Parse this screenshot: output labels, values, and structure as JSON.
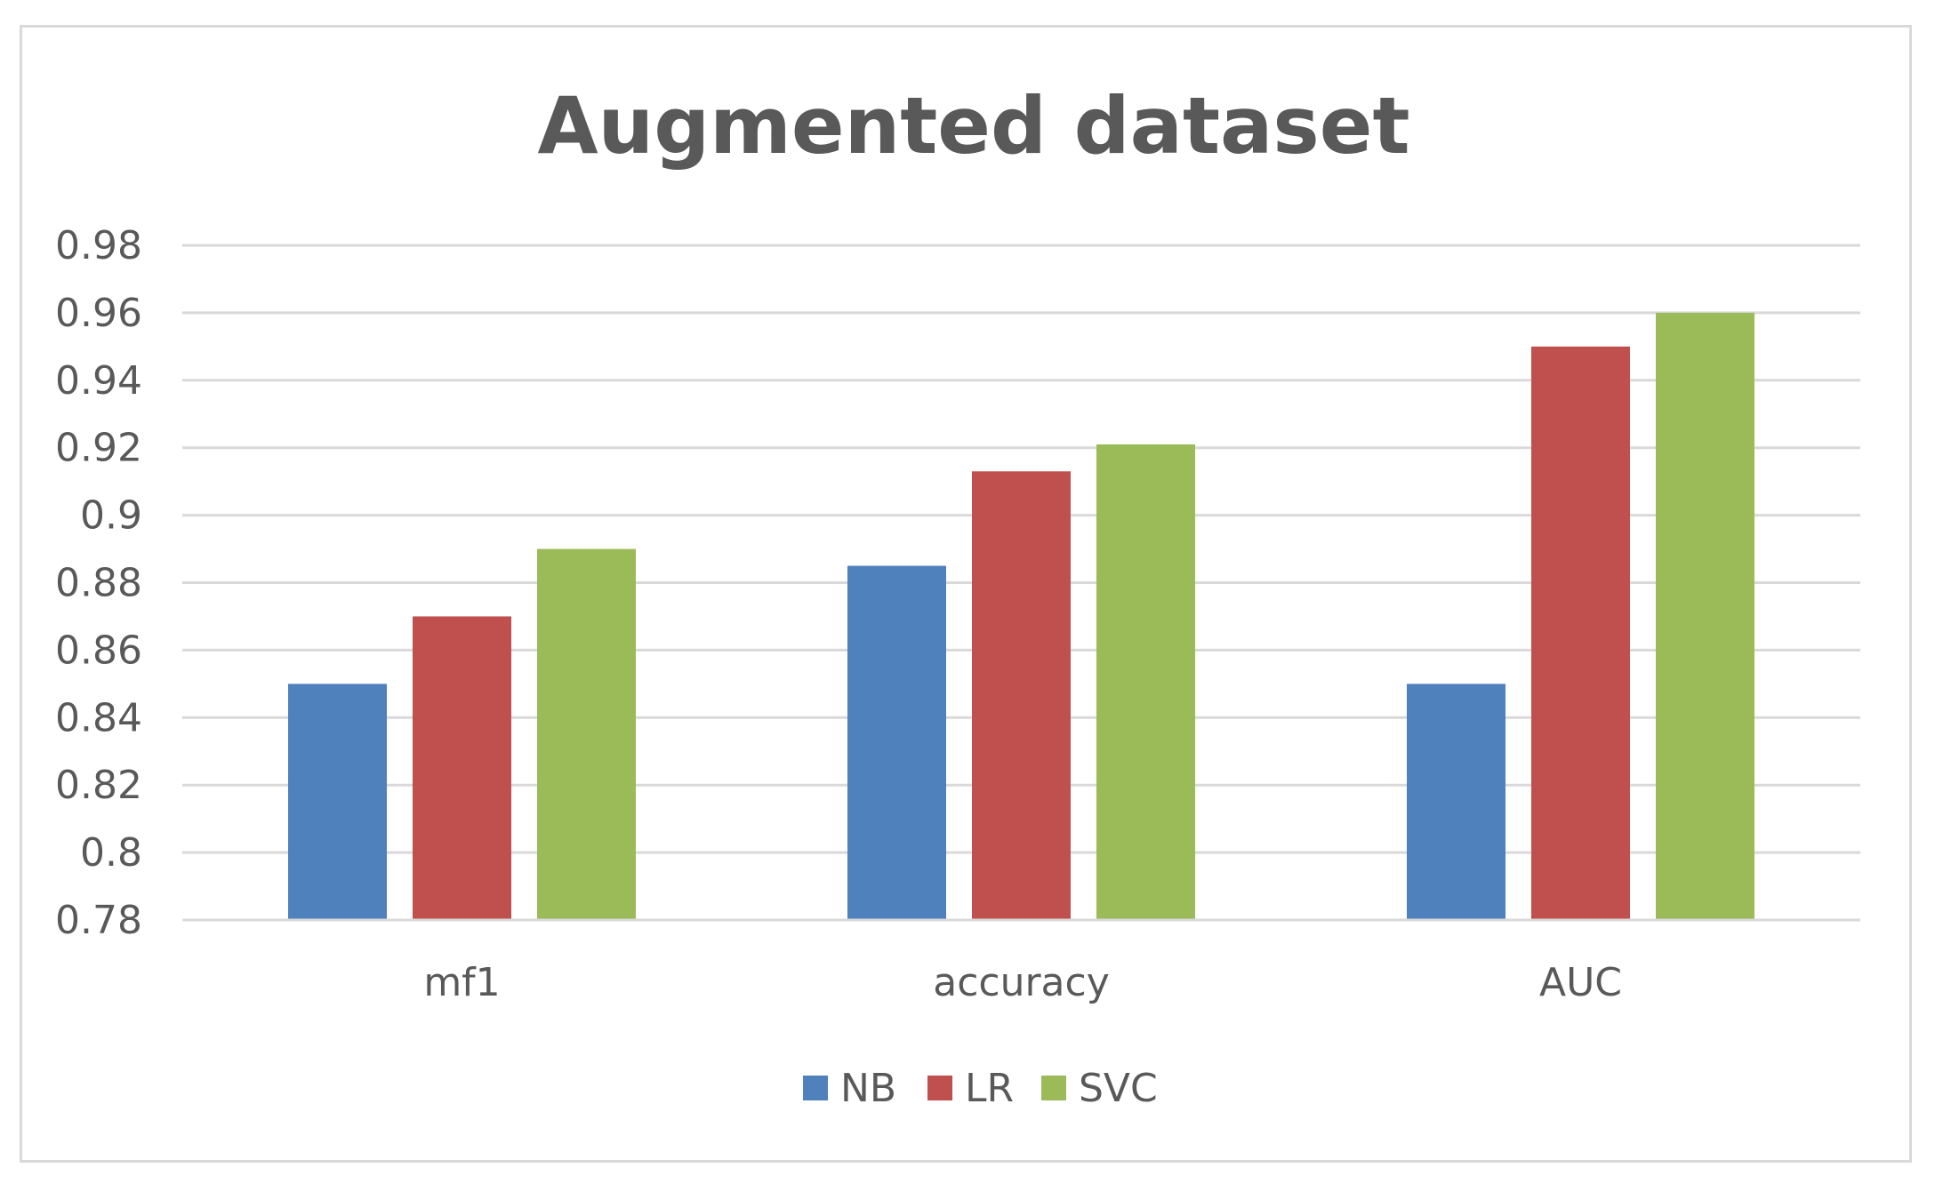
{
  "chart_data": {
    "type": "bar",
    "title": "Augmented dataset",
    "xlabel": "",
    "ylabel": "",
    "categories": [
      "mf1",
      "accuracy",
      "AUC"
    ],
    "series": [
      {
        "name": "NB",
        "color": "#4f81bd",
        "values": [
          0.85,
          0.885,
          0.85
        ]
      },
      {
        "name": "LR",
        "color": "#c0504d",
        "values": [
          0.87,
          0.913,
          0.95
        ]
      },
      {
        "name": "SVC",
        "color": "#9bbb59",
        "values": [
          0.89,
          0.921,
          0.96
        ]
      }
    ],
    "ylim": [
      0.78,
      0.98
    ],
    "yticks": [
      "0.78",
      "0.8",
      "0.82",
      "0.84",
      "0.86",
      "0.88",
      "0.9",
      "0.92",
      "0.94",
      "0.96",
      "0.98"
    ],
    "grid": true,
    "legend_position": "bottom"
  }
}
